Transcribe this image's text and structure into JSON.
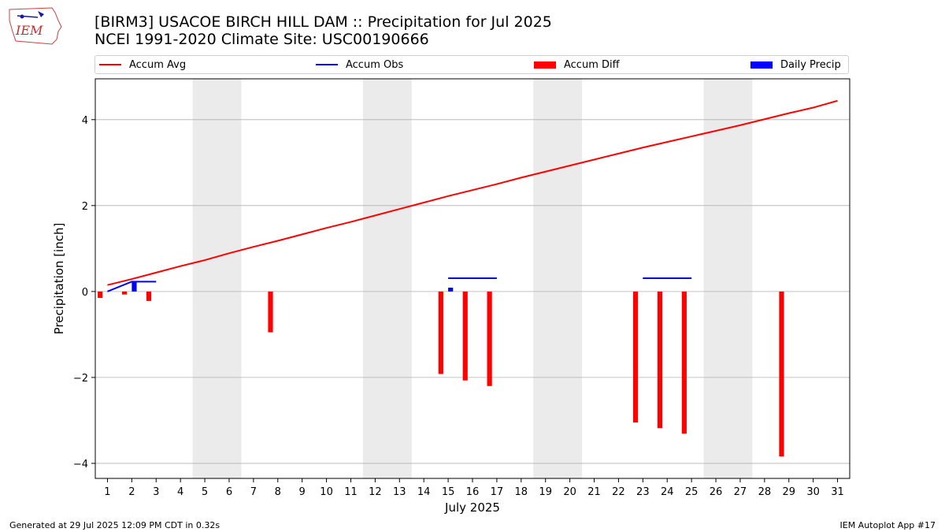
{
  "header": {
    "title_line1": "[BIRM3] USACOE BIRCH HILL DAM :: Precipitation for Jul 2025",
    "title_line2": "NCEI 1991-2020 Climate Site: USC00190666"
  },
  "logo": {
    "text": "IEM",
    "icon": "iem-iowa-logo-icon"
  },
  "legend": {
    "items": [
      {
        "label": "Accum Avg",
        "kind": "line",
        "color": "#ff0000"
      },
      {
        "label": "Accum Obs",
        "kind": "line",
        "color": "#0000ff"
      },
      {
        "label": "Accum Diff",
        "kind": "box",
        "color": "#ff0000"
      },
      {
        "label": "Daily Precip",
        "kind": "box",
        "color": "#0000ff"
      }
    ]
  },
  "footer": {
    "left": "Generated at 29 Jul 2025 12:09 PM CDT in 0.32s",
    "right": "IEM Autoplot App #17"
  },
  "chart_data": {
    "type": "bar",
    "title": "[BIRM3] USACOE BIRCH HILL DAM :: Precipitation for Jul 2025",
    "subtitle": "NCEI 1991-2020 Climate Site: USC00190666",
    "xlabel": "July 2025",
    "ylabel": "Precipitation [inch]",
    "ylim": [
      -4.35,
      4.95
    ],
    "xlim": [
      0.5,
      31.5
    ],
    "yticks": [
      -4,
      -2,
      0,
      2,
      4
    ],
    "ytick_labels": [
      "−4",
      "−2",
      "0",
      "2",
      "4"
    ],
    "xticks": [
      1,
      2,
      3,
      4,
      5,
      6,
      7,
      8,
      9,
      10,
      11,
      12,
      13,
      14,
      15,
      16,
      17,
      18,
      19,
      20,
      21,
      22,
      23,
      24,
      25,
      26,
      27,
      28,
      29,
      30,
      31
    ],
    "grid": "y",
    "legend_position": "top",
    "weekend_shading": [
      [
        4.5,
        6.5
      ],
      [
        11.5,
        13.5
      ],
      [
        18.5,
        20.5
      ],
      [
        25.5,
        27.5
      ]
    ],
    "colors": {
      "avg": "#ff0000",
      "obs": "#0000ff",
      "diff": "#ff0000",
      "daily": "#0000ff",
      "weekend": "#ebebeb",
      "grid": "#b0b0b0"
    },
    "series": [
      {
        "name": "Accum Avg",
        "kind": "line",
        "x": [
          1,
          2,
          3,
          4,
          5,
          6,
          7,
          8,
          9,
          10,
          11,
          12,
          13,
          14,
          15,
          16,
          17,
          18,
          19,
          20,
          21,
          22,
          23,
          24,
          25,
          26,
          27,
          28,
          29,
          30,
          31
        ],
        "values": [
          0.15,
          0.29,
          0.44,
          0.59,
          0.73,
          0.89,
          1.04,
          1.18,
          1.33,
          1.48,
          1.62,
          1.77,
          1.92,
          2.07,
          2.22,
          2.36,
          2.5,
          2.65,
          2.79,
          2.93,
          3.07,
          3.21,
          3.35,
          3.48,
          3.61,
          3.74,
          3.87,
          4.01,
          4.15,
          4.28,
          4.44
        ]
      },
      {
        "name": "Accum Obs",
        "kind": "line",
        "segments": [
          {
            "x": [
              1,
              2,
              3
            ],
            "values": [
              0.0,
              0.23,
              0.23
            ]
          },
          {
            "x": [
              15,
              16,
              17
            ],
            "values": [
              0.31,
              0.31,
              0.31
            ]
          },
          {
            "x": [
              23,
              24,
              25
            ],
            "values": [
              0.31,
              0.31,
              0.31
            ]
          }
        ]
      },
      {
        "name": "Accum Diff",
        "kind": "bar",
        "x": [
          1,
          2,
          3,
          8,
          15,
          16,
          17,
          23,
          24,
          25,
          29
        ],
        "values": [
          -0.15,
          -0.07,
          -0.22,
          -0.95,
          -1.92,
          -2.07,
          -2.2,
          -3.05,
          -3.18,
          -3.31,
          -3.84
        ]
      },
      {
        "name": "Daily Precip",
        "kind": "bar",
        "x": [
          2,
          15
        ],
        "values": [
          0.23,
          0.09
        ]
      }
    ]
  }
}
